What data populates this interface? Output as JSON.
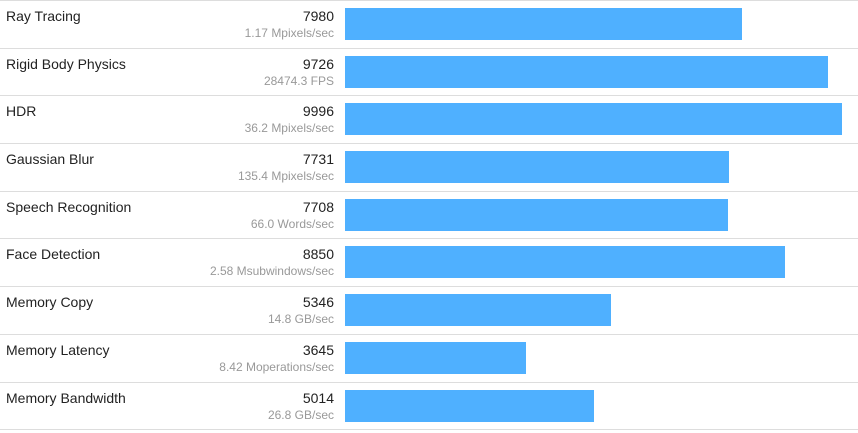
{
  "colors": {
    "bar": "#4fb0ff",
    "row_border": "#dddddd",
    "label_text": "#222222",
    "rate_text": "#999999"
  },
  "chart_data": {
    "type": "bar",
    "orientation": "horizontal",
    "xlim": [
      0,
      10000
    ],
    "categories": [
      "Ray Tracing",
      "Rigid Body Physics",
      "HDR",
      "Gaussian Blur",
      "Speech Recognition",
      "Face Detection",
      "Memory Copy",
      "Memory Latency",
      "Memory Bandwidth"
    ],
    "values": [
      7980,
      9726,
      9996,
      7731,
      7708,
      8850,
      5346,
      3645,
      5014
    ],
    "rates": [
      "1.17 Mpixels/sec",
      "28474.3 FPS",
      "36.2 Mpixels/sec",
      "135.4 Mpixels/sec",
      "66.0 Words/sec",
      "2.58 Msubwindows/sec",
      "14.8 GB/sec",
      "8.42 Moperations/sec",
      "26.8 GB/sec"
    ]
  }
}
